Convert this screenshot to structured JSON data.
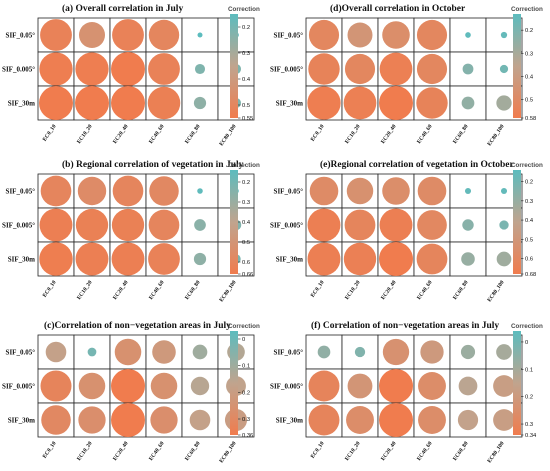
{
  "colors": {
    "low": "#f07c4e",
    "mid": "#c0a48e",
    "high": "#5cbcbe"
  },
  "chart_data": [
    {
      "type": "heatmap",
      "title": "(a)  Overall correlation in July",
      "rows": [
        "SIF_0.05°",
        "SIF_0.005°",
        "SIF_30m"
      ],
      "columns": [
        "EC0_10",
        "EC10_20",
        "EC20_40",
        "EC40_60",
        "EC60_80",
        "EC80_100"
      ],
      "values": [
        [
          0.52,
          0.44,
          0.52,
          0.5,
          0.14,
          0.16
        ],
        [
          0.54,
          0.54,
          0.55,
          0.52,
          0.22,
          0.22
        ],
        [
          0.55,
          0.55,
          0.55,
          0.53,
          0.25,
          0.22
        ]
      ],
      "legend": {
        "title": "Correction",
        "range": [
          0.15,
          0.55
        ],
        "ticks": [
          0.2,
          0.3,
          0.4,
          0.5,
          0.55
        ]
      }
    },
    {
      "type": "heatmap",
      "title": "(d)Overall correlation in October",
      "rows": [
        "SIF_0.05°",
        "SIF_0.005°",
        "SIF_30m"
      ],
      "columns": [
        "EC0_10",
        "EC10_20",
        "EC20_40",
        "EC40_60",
        "EC60_80",
        "EC80_100"
      ],
      "values": [
        [
          0.52,
          0.44,
          0.48,
          0.52,
          0.14,
          0.15
        ],
        [
          0.54,
          0.52,
          0.56,
          0.52,
          0.22,
          0.18
        ],
        [
          0.57,
          0.56,
          0.58,
          0.54,
          0.25,
          0.29
        ]
      ],
      "legend": {
        "title": "Correction",
        "range": [
          0.13,
          0.58
        ],
        "ticks": [
          0.2,
          0.3,
          0.4,
          0.5,
          0.58
        ]
      }
    },
    {
      "type": "heatmap",
      "title": "(b)   Regional correlation of vegetation in July",
      "rows": [
        "SIF_0.05°",
        "SIF_0.005°",
        "SIF_30m"
      ],
      "columns": [
        "EC0_10",
        "EC10_20",
        "EC20_40",
        "EC40_60",
        "EC60_80",
        "EC80_100"
      ],
      "values": [
        [
          0.6,
          0.56,
          0.6,
          0.58,
          0.15,
          0.15
        ],
        [
          0.64,
          0.63,
          0.63,
          0.6,
          0.26,
          0.24
        ],
        [
          0.65,
          0.64,
          0.64,
          0.62,
          0.27,
          0.22
        ]
      ],
      "legend": {
        "title": "Correction",
        "range": [
          0.14,
          0.66
        ],
        "ticks": [
          0.2,
          0.3,
          0.4,
          0.5,
          0.6,
          0.66
        ]
      }
    },
    {
      "type": "heatmap",
      "title": "(e)Regional correlation of vegetation in October",
      "rows": [
        "SIF_0.05°",
        "SIF_0.005°",
        "SIF_30m"
      ],
      "columns": [
        "EC0_10",
        "EC10_20",
        "EC20_40",
        "EC40_60",
        "EC60_80",
        "EC80_100"
      ],
      "values": [
        [
          0.58,
          0.54,
          0.56,
          0.58,
          0.16,
          0.16
        ],
        [
          0.66,
          0.62,
          0.66,
          0.6,
          0.26,
          0.22
        ],
        [
          0.66,
          0.65,
          0.68,
          0.62,
          0.3,
          0.32
        ]
      ],
      "legend": {
        "title": "Correction",
        "range": [
          0.14,
          0.68
        ],
        "ticks": [
          0.2,
          0.3,
          0.4,
          0.5,
          0.6,
          0.68
        ]
      }
    },
    {
      "type": "heatmap",
      "title": "(c)Correlation of non−vegetation areas in July",
      "rows": [
        "SIF_0.05°",
        "SIF_0.005°",
        "SIF_30m"
      ],
      "columns": [
        "EC0_10",
        "EC10_20",
        "EC20_40",
        "EC40_60",
        "EC60_80",
        "EC80_100"
      ],
      "values": [
        [
          0.18,
          0.02,
          0.26,
          0.22,
          0.1,
          0.14
        ],
        [
          0.32,
          0.26,
          0.36,
          0.26,
          0.15,
          0.17
        ],
        [
          0.3,
          0.27,
          0.36,
          0.27,
          0.18,
          0.2
        ]
      ],
      "legend": {
        "title": "Correction",
        "range": [
          -0.03,
          0.36
        ],
        "ticks": [
          0,
          0.1,
          0.2,
          0.3,
          0.36
        ]
      }
    },
    {
      "type": "heatmap",
      "title": "(f) Correlation of non−vegetation areas in July",
      "rows": [
        "SIF_0.05°",
        "SIF_0.005°",
        "SIF_30m"
      ],
      "columns": [
        "EC0_10",
        "EC10_20",
        "EC20_40",
        "EC40_60",
        "EC60_80",
        "EC80_100"
      ],
      "values": [
        [
          0.06,
          0.03,
          0.24,
          0.2,
          0.08,
          0.1
        ],
        [
          0.3,
          0.22,
          0.34,
          0.26,
          0.14,
          0.18
        ],
        [
          0.3,
          0.26,
          0.34,
          0.26,
          0.16,
          0.18
        ]
      ],
      "legend": {
        "title": "Correction",
        "range": [
          -0.04,
          0.34
        ],
        "ticks": [
          0,
          0.1,
          0.2,
          0.3,
          0.34
        ]
      }
    }
  ]
}
